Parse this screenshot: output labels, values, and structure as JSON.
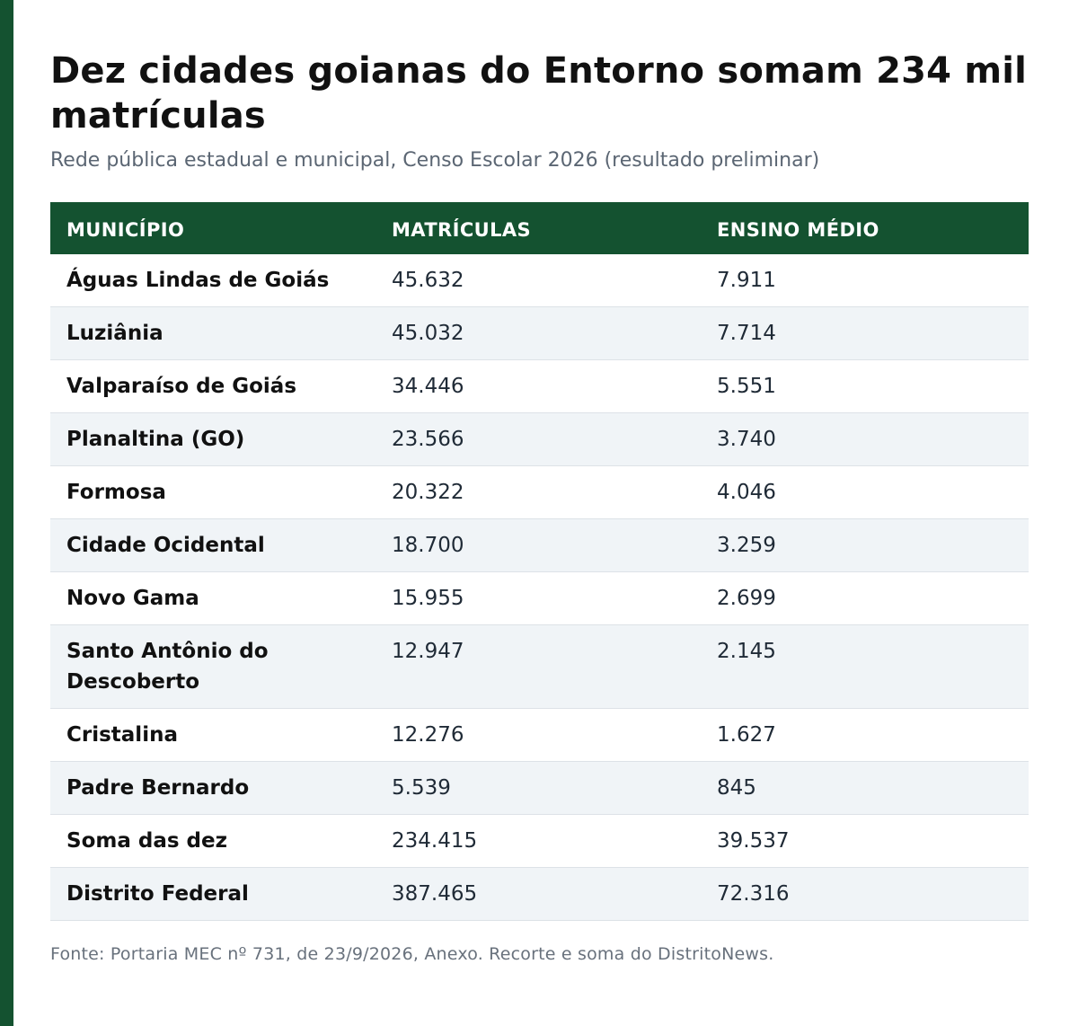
{
  "colors": {
    "accent": "#145230",
    "header_text": "#ffffff",
    "row_stripe": "#f0f4f7"
  },
  "title": "Dez cidades goianas do Entorno somam 234 mil matrículas",
  "subtitle": "Rede pública estadual e municipal, Censo Escolar 2026 (resultado preliminar)",
  "table": {
    "headers": [
      "MUNICÍPIO",
      "MATRÍCULAS",
      "ENSINO MÉDIO"
    ],
    "rows": [
      {
        "municipio": "Águas Lindas de Goiás",
        "matriculas": "45.632",
        "ensino_medio": "7.911"
      },
      {
        "municipio": "Luziânia",
        "matriculas": "45.032",
        "ensino_medio": "7.714"
      },
      {
        "municipio": "Valparaíso de Goiás",
        "matriculas": "34.446",
        "ensino_medio": "5.551"
      },
      {
        "municipio": "Planaltina (GO)",
        "matriculas": "23.566",
        "ensino_medio": "3.740"
      },
      {
        "municipio": "Formosa",
        "matriculas": "20.322",
        "ensino_medio": "4.046"
      },
      {
        "municipio": "Cidade Ocidental",
        "matriculas": "18.700",
        "ensino_medio": "3.259"
      },
      {
        "municipio": "Novo Gama",
        "matriculas": "15.955",
        "ensino_medio": "2.699"
      },
      {
        "municipio": "Santo Antônio do Descoberto",
        "matriculas": "12.947",
        "ensino_medio": "2.145"
      },
      {
        "municipio": "Cristalina",
        "matriculas": "12.276",
        "ensino_medio": "1.627"
      },
      {
        "municipio": "Padre Bernardo",
        "matriculas": "5.539",
        "ensino_medio": "845"
      },
      {
        "municipio": "Soma das dez",
        "matriculas": "234.415",
        "ensino_medio": "39.537"
      },
      {
        "municipio": "Distrito Federal",
        "matriculas": "387.465",
        "ensino_medio": "72.316"
      }
    ]
  },
  "footnote": "Fonte: Portaria MEC nº 731, de 23/9/2026, Anexo. Recorte e soma do DistritoNews."
}
